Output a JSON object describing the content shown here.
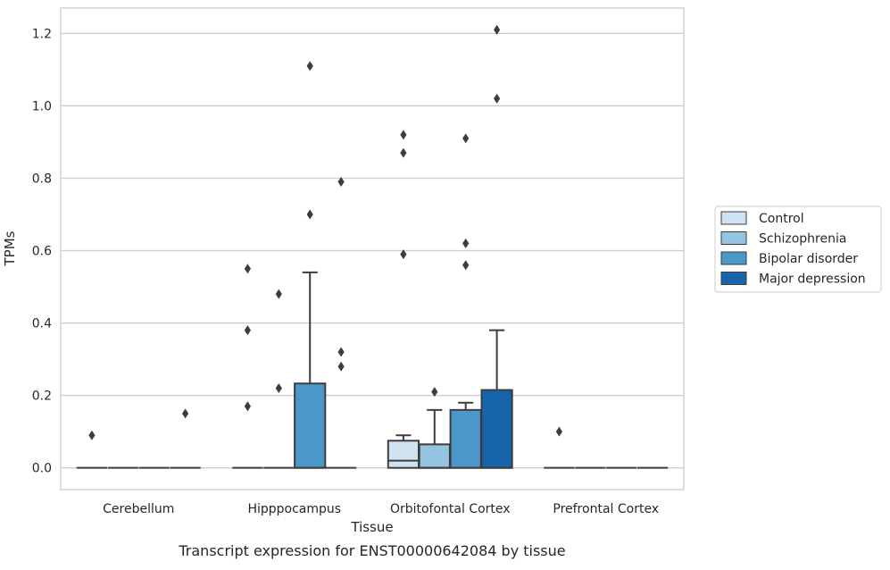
{
  "chart_data": {
    "type": "box",
    "title": "",
    "caption": "Transcript expression for ENST00000642084 by tissue",
    "xlabel": "Tissue",
    "ylabel": "TPMs",
    "ylim": [
      -0.06,
      1.27
    ],
    "yticks": [
      0.0,
      0.2,
      0.4,
      0.6,
      0.8,
      1.0,
      1.2
    ],
    "ytick_labels": [
      "0.0",
      "0.2",
      "0.4",
      "0.6",
      "0.8",
      "1.0",
      "1.2"
    ],
    "grid": "horizontal",
    "legend_position": "right",
    "categories": [
      "Cerebellum",
      "Hipppocampus",
      "Orbitofontal Cortex",
      "Prefrontal Cortex"
    ],
    "series": [
      {
        "name": "Control",
        "color": "#d0e1f2",
        "boxes": [
          {
            "q1": 0.0,
            "median": 0.0,
            "q3": 0.0,
            "whisker_low": 0.0,
            "whisker_high": 0.0,
            "outliers": [
              0.09
            ]
          },
          {
            "q1": 0.0,
            "median": 0.0,
            "q3": 0.0,
            "whisker_low": 0.0,
            "whisker_high": 0.0,
            "outliers": [
              0.17,
              0.38,
              0.55
            ]
          },
          {
            "q1": 0.0,
            "median": 0.02,
            "q3": 0.075,
            "whisker_low": 0.0,
            "whisker_high": 0.09,
            "outliers": [
              0.59,
              0.87,
              0.92
            ]
          },
          {
            "q1": 0.0,
            "median": 0.0,
            "q3": 0.0,
            "whisker_low": 0.0,
            "whisker_high": 0.0,
            "outliers": [
              0.1
            ]
          }
        ]
      },
      {
        "name": "Schizophrenia",
        "color": "#94c4df",
        "boxes": [
          {
            "q1": 0.0,
            "median": 0.0,
            "q3": 0.0,
            "whisker_low": 0.0,
            "whisker_high": 0.0,
            "outliers": []
          },
          {
            "q1": 0.0,
            "median": 0.0,
            "q3": 0.0,
            "whisker_low": 0.0,
            "whisker_high": 0.0,
            "outliers": [
              0.22,
              0.48
            ]
          },
          {
            "q1": 0.0,
            "median": 0.0,
            "q3": 0.065,
            "whisker_low": 0.0,
            "whisker_high": 0.16,
            "outliers": [
              0.21
            ]
          },
          {
            "q1": 0.0,
            "median": 0.0,
            "q3": 0.0,
            "whisker_low": 0.0,
            "whisker_high": 0.0,
            "outliers": []
          }
        ]
      },
      {
        "name": "Bipolar disorder",
        "color": "#4a98c9",
        "boxes": [
          {
            "q1": 0.0,
            "median": 0.0,
            "q3": 0.0,
            "whisker_low": 0.0,
            "whisker_high": 0.0,
            "outliers": []
          },
          {
            "q1": 0.0,
            "median": 0.0,
            "q3": 0.233,
            "whisker_low": 0.0,
            "whisker_high": 0.54,
            "outliers": [
              0.7,
              1.11
            ]
          },
          {
            "q1": 0.0,
            "median": 0.0,
            "q3": 0.16,
            "whisker_low": 0.0,
            "whisker_high": 0.18,
            "outliers": [
              0.56,
              0.62,
              0.91
            ]
          },
          {
            "q1": 0.0,
            "median": 0.0,
            "q3": 0.0,
            "whisker_low": 0.0,
            "whisker_high": 0.0,
            "outliers": []
          }
        ]
      },
      {
        "name": "Major depression",
        "color": "#1764ab",
        "boxes": [
          {
            "q1": 0.0,
            "median": 0.0,
            "q3": 0.0,
            "whisker_low": 0.0,
            "whisker_high": 0.0,
            "outliers": [
              0.15
            ]
          },
          {
            "q1": 0.0,
            "median": 0.0,
            "q3": 0.0,
            "whisker_low": 0.0,
            "whisker_high": 0.0,
            "outliers": [
              0.28,
              0.32,
              0.79
            ]
          },
          {
            "q1": 0.0,
            "median": 0.0,
            "q3": 0.215,
            "whisker_low": 0.0,
            "whisker_high": 0.38,
            "outliers": [
              1.02,
              1.21
            ]
          },
          {
            "q1": 0.0,
            "median": 0.0,
            "q3": 0.0,
            "whisker_low": 0.0,
            "whisker_high": 0.0,
            "outliers": []
          }
        ]
      }
    ]
  }
}
